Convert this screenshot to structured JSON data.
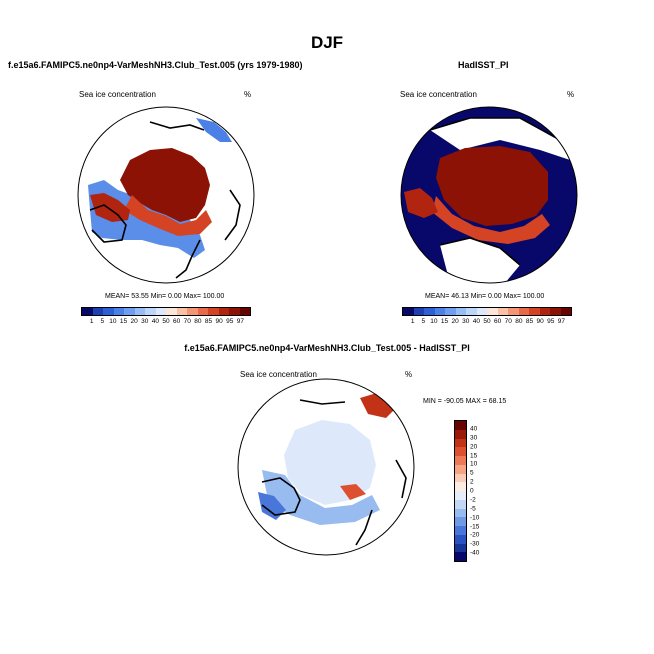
{
  "figure_title": "DJF",
  "chart_data": [
    {
      "type": "heatmap",
      "title": "f.e15a6.FAMIPC5.ne0np4-VarMeshNH3.Club_Test.005 (yrs 1979-1980)",
      "variable": "Sea ice concentration",
      "units": "%",
      "stats_text": "MEAN=  53.55  Min=   0.00  Max= 100.00",
      "mean": 53.55,
      "min": 0.0,
      "max": 100.0,
      "colorbar_levels": [
        "1",
        "5",
        "10",
        "15",
        "20",
        "30",
        "40",
        "50",
        "60",
        "70",
        "80",
        "85",
        "90",
        "95",
        "97"
      ],
      "colorbar_colors": [
        "#08086a",
        "#1c3fb2",
        "#2b60d6",
        "#4b80e6",
        "#6f9ef0",
        "#96bdf6",
        "#bcd6fa",
        "#dde9fb",
        "#fce6da",
        "#f9c2a6",
        "#f29676",
        "#e86a48",
        "#d44323",
        "#b12410",
        "#8b1204",
        "#680400"
      ]
    },
    {
      "type": "heatmap",
      "title": "HadISST_PI",
      "variable": "Sea ice concentration",
      "units": "%",
      "stats_text": "MEAN=  46.13  Min=   0.00  Max= 100.00",
      "mean": 46.13,
      "min": 0.0,
      "max": 100.0,
      "colorbar_levels": [
        "1",
        "5",
        "10",
        "15",
        "20",
        "30",
        "40",
        "50",
        "60",
        "70",
        "80",
        "85",
        "90",
        "95",
        "97"
      ],
      "colorbar_colors": [
        "#08086a",
        "#1c3fb2",
        "#2b60d6",
        "#4b80e6",
        "#6f9ef0",
        "#96bdf6",
        "#bcd6fa",
        "#dde9fb",
        "#fce6da",
        "#f9c2a6",
        "#f29676",
        "#e86a48",
        "#d44323",
        "#b12410",
        "#8b1204",
        "#680400"
      ]
    },
    {
      "type": "heatmap",
      "title": "f.e15a6.FAMIPC5.ne0np4-VarMeshNH3.Club_Test.005 - HadISST_PI",
      "variable": "Sea ice concentration",
      "units": "%",
      "stats_text": "MIN = -90.05 MAX =  68.15",
      "min": -90.05,
      "max": 68.15,
      "colorbar_levels": [
        "40",
        "30",
        "20",
        "15",
        "10",
        "5",
        "2",
        "0",
        "-2",
        "-5",
        "-10",
        "-15",
        "-20",
        "-30",
        "-40"
      ],
      "colorbar_colors": [
        "#680400",
        "#9a1a08",
        "#c23216",
        "#dc5030",
        "#ec7a58",
        "#f5a585",
        "#fbcdb8",
        "#fdece2",
        "#e6eff9",
        "#c2d8f5",
        "#98bbf0",
        "#6f9ae6",
        "#4977d9",
        "#2a52c0",
        "#163598",
        "#08086a"
      ]
    }
  ]
}
